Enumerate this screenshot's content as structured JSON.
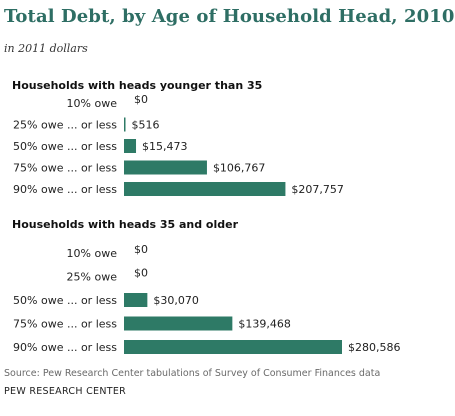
{
  "title": "Total Debt, by Age of Household Head, 2010",
  "subtitle": "in 2011 dollars",
  "source": "Source: Pew Research Center tabulations of Survey of Consumer Finances data",
  "org": "PEW RESEARCH CENTER",
  "colors": {
    "bar": "#2e7a66",
    "title": "#2e6e64"
  },
  "chart_data": [
    {
      "type": "bar",
      "orientation": "horizontal",
      "title": "Households with heads younger than 35",
      "categories": [
        "10% owe",
        "25% owe ... or less",
        "50% owe ... or less",
        "75% owe ... or less",
        "90% owe ... or less"
      ],
      "values": [
        0,
        516,
        15473,
        106767,
        207757
      ],
      "labels": [
        "$0",
        "$516",
        "$15,473",
        "$106,767",
        "$207,757"
      ]
    },
    {
      "type": "bar",
      "orientation": "horizontal",
      "title": "Households with heads 35 and older",
      "categories": [
        "10% owe",
        "25% owe",
        "50% owe ... or less",
        "75% owe ... or less",
        "90% owe ... or less"
      ],
      "values": [
        0,
        0,
        30070,
        139468,
        280586
      ],
      "labels": [
        "$0",
        "$0",
        "$30,070",
        "$139,468",
        "$280,586"
      ]
    }
  ]
}
